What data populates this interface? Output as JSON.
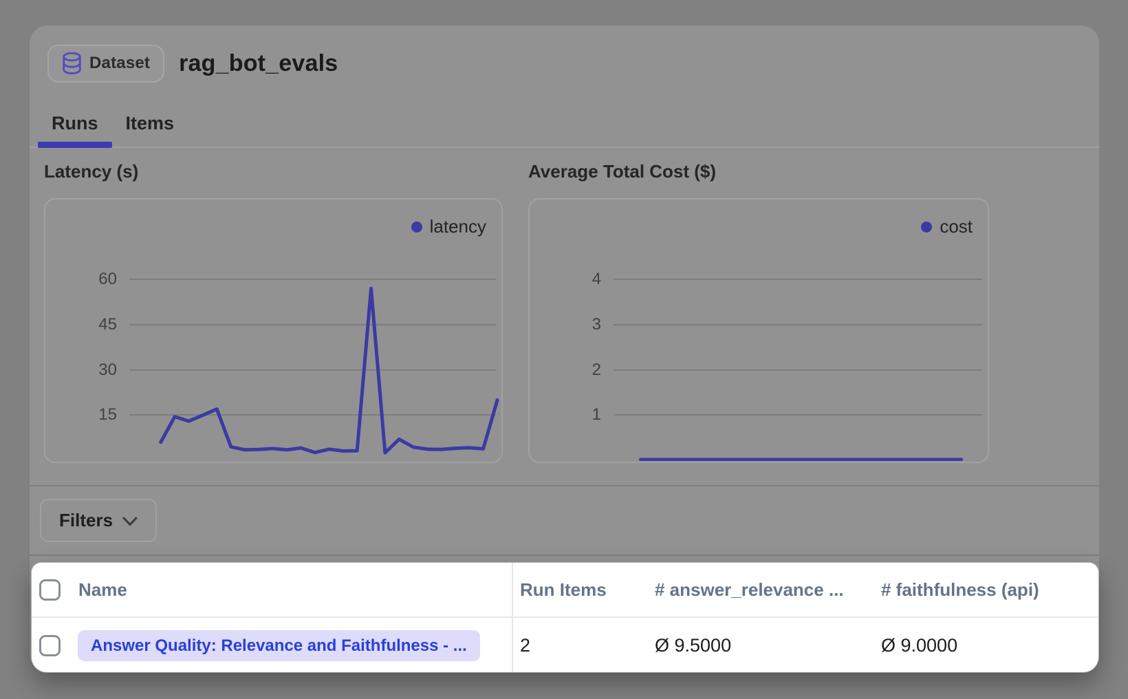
{
  "header": {
    "badge_label": "Dataset",
    "title": "rag_bot_evals"
  },
  "tabs": [
    {
      "label": "Runs",
      "active": true
    },
    {
      "label": "Items",
      "active": false
    }
  ],
  "colors": {
    "accent_indigo": "#3c3aa2",
    "icon_indigo": "#4f4dc2",
    "tab_underline": "#3d3baf",
    "link_blue": "#2940d7",
    "pill_bg": "#dedbfb",
    "table_bg": "#ffffff"
  },
  "chart_data": [
    {
      "type": "line",
      "title": "Latency (s)",
      "legend": "latency",
      "xlabel": "",
      "ylabel": "",
      "y_ticks": [
        60,
        45,
        30,
        15
      ],
      "ylim": [
        0,
        66
      ],
      "grid": true,
      "legend_position": "top-right",
      "values": [
        6,
        14.5,
        13,
        15,
        17,
        4.5,
        3.5,
        3.6,
        3.9,
        3.5,
        4.1,
        2.6,
        3.7,
        3.1,
        3.2,
        57,
        2.5,
        7,
        4.4,
        3.7,
        3.6,
        4,
        4.2,
        3.8,
        20
      ]
    },
    {
      "type": "line",
      "title": "Average Total Cost ($)",
      "legend": "cost",
      "xlabel": "",
      "ylabel": "",
      "y_ticks": [
        4,
        3,
        2,
        1
      ],
      "ylim": [
        0,
        4.4
      ],
      "grid": true,
      "legend_position": "top-right",
      "values": [
        0.02,
        0.02,
        0.02,
        0.02,
        0.02,
        0.02,
        0.02,
        0.02,
        0.02,
        0.02,
        0.02,
        0.02,
        0.02,
        0.02,
        0.02,
        0.02,
        0.02,
        0.02,
        0.02,
        0.02,
        0.02,
        0.02,
        0.02,
        0.02,
        0.02
      ]
    }
  ],
  "filters": {
    "label": "Filters"
  },
  "table": {
    "columns": [
      "Name",
      "Run Items",
      "# answer_relevance ...",
      "# faithfulness (api)"
    ],
    "rows": [
      {
        "name": "Answer Quality: Relevance and Faithfulness - ...",
        "run_items": "2",
        "answer_relevance": "Ø 9.5000",
        "faithfulness": "Ø 9.0000"
      }
    ]
  }
}
